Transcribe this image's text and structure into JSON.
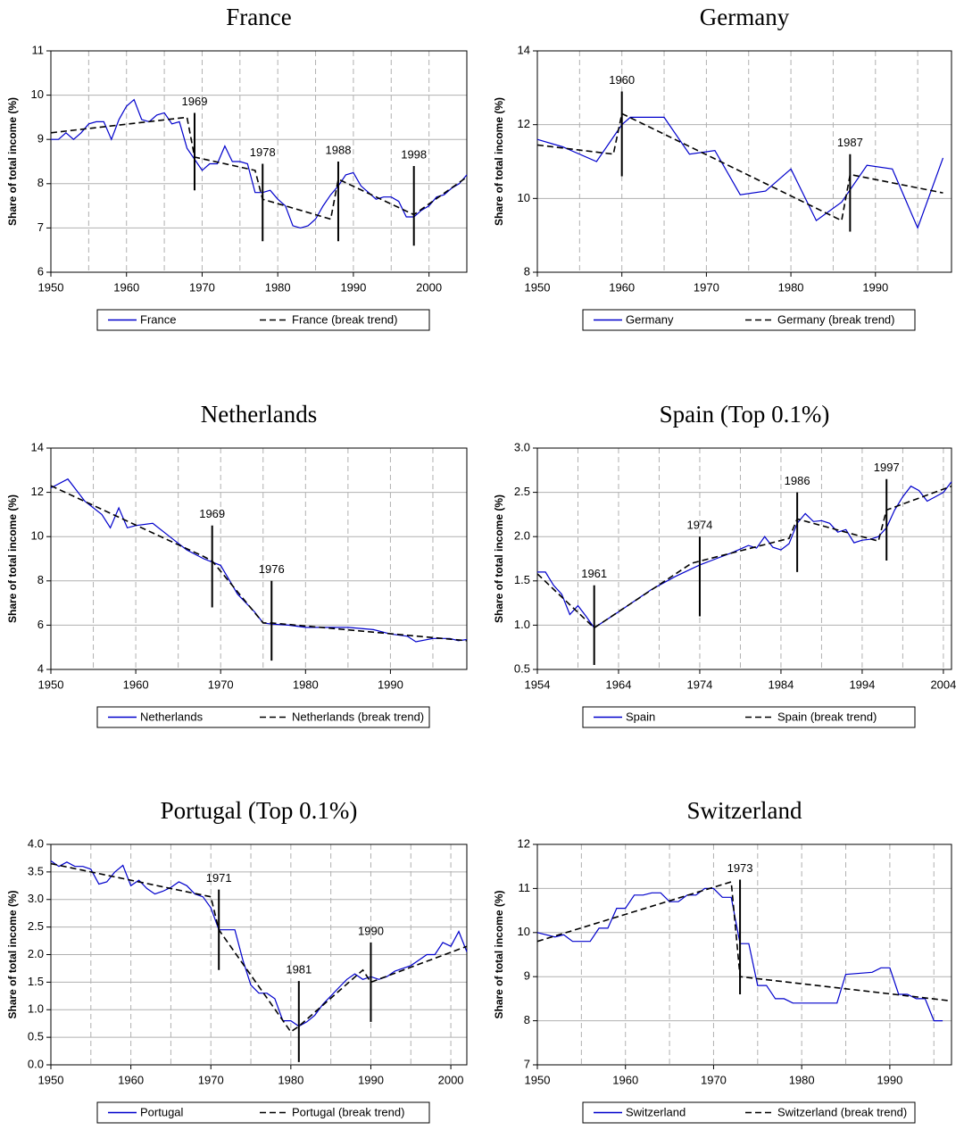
{
  "chart_data": [
    {
      "type": "line",
      "title": "France",
      "ylabel": "Share of total income (%)",
      "xlim": [
        1950,
        2005
      ],
      "xticks": [
        1950,
        1960,
        1970,
        1980,
        1990,
        2000
      ],
      "ylim": [
        6,
        11
      ],
      "yticks": [
        6,
        7,
        8,
        9,
        10,
        11
      ],
      "grid": true,
      "xgrid_step": 5,
      "series": [
        {
          "name": "France",
          "color": "#0000cc",
          "style": "solid",
          "x": [
            1950,
            1951,
            1952,
            1953,
            1954,
            1955,
            1956,
            1957,
            1958,
            1959,
            1960,
            1961,
            1962,
            1963,
            1964,
            1965,
            1966,
            1967,
            1968,
            1969,
            1970,
            1971,
            1972,
            1973,
            1974,
            1975,
            1976,
            1977,
            1978,
            1979,
            1980,
            1981,
            1982,
            1983,
            1984,
            1985,
            1986,
            1987,
            1988,
            1989,
            1990,
            1991,
            1992,
            1993,
            1994,
            1995,
            1996,
            1997,
            1998,
            1999,
            2000,
            2001,
            2002,
            2003,
            2004,
            2005
          ],
          "values": [
            9.0,
            9.0,
            9.15,
            9.0,
            9.15,
            9.35,
            9.4,
            9.4,
            9.0,
            9.45,
            9.75,
            9.9,
            9.45,
            9.4,
            9.55,
            9.6,
            9.35,
            9.4,
            8.8,
            8.55,
            8.3,
            8.45,
            8.45,
            8.85,
            8.5,
            8.5,
            8.45,
            7.8,
            7.8,
            7.85,
            7.65,
            7.5,
            7.05,
            7.0,
            7.05,
            7.2,
            7.5,
            7.75,
            7.95,
            8.2,
            8.25,
            7.95,
            7.8,
            7.65,
            7.7,
            7.7,
            7.6,
            7.25,
            7.25,
            7.4,
            7.5,
            7.7,
            7.75,
            7.9,
            8.0,
            8.2
          ]
        },
        {
          "name": "France (break trend)",
          "color": "#000000",
          "style": "dashed",
          "x": [
            1950,
            1968,
            1969,
            1977,
            1978,
            1987,
            1988,
            1998,
            2005
          ],
          "values": [
            9.15,
            9.5,
            8.6,
            8.3,
            7.65,
            7.2,
            8.1,
            7.3,
            8.15
          ]
        }
      ],
      "breaks": [
        {
          "x": 1969,
          "y": [
            7.85,
            9.6
          ]
        },
        {
          "x": 1978,
          "y": [
            6.7,
            8.45
          ]
        },
        {
          "x": 1988,
          "y": [
            6.7,
            8.5
          ]
        },
        {
          "x": 1998,
          "y": [
            6.6,
            8.4
          ]
        }
      ]
    },
    {
      "type": "line",
      "title": "Germany",
      "ylabel": "Share of total income (%)",
      "xlim": [
        1950,
        1999
      ],
      "xticks": [
        1950,
        1960,
        1970,
        1980,
        1990
      ],
      "ylim": [
        8,
        14
      ],
      "yticks": [
        8,
        10,
        12,
        14
      ],
      "grid": true,
      "xgrid_step": 5,
      "series": [
        {
          "name": "Germany",
          "color": "#0000cc",
          "style": "solid",
          "x": [
            1950,
            1953,
            1957,
            1960,
            1961,
            1965,
            1968,
            1971,
            1974,
            1977,
            1980,
            1983,
            1986,
            1989,
            1992,
            1995,
            1998
          ],
          "values": [
            11.6,
            11.4,
            11.0,
            12.0,
            12.2,
            12.2,
            11.2,
            11.3,
            10.1,
            10.2,
            10.8,
            9.4,
            9.9,
            10.9,
            10.8,
            9.2,
            11.1
          ]
        },
        {
          "name": "Germany (break trend)",
          "color": "#000000",
          "style": "dashed",
          "x": [
            1950,
            1959,
            1960,
            1986,
            1987,
            1998
          ],
          "values": [
            11.45,
            11.2,
            12.3,
            9.4,
            10.65,
            10.15
          ]
        }
      ],
      "breaks": [
        {
          "x": 1960,
          "y": [
            10.6,
            12.9
          ]
        },
        {
          "x": 1987,
          "y": [
            9.1,
            11.2
          ]
        }
      ]
    },
    {
      "type": "line",
      "title": "Netherlands",
      "ylabel": "Share of total income (%)",
      "xlim": [
        1950,
        1999
      ],
      "xticks": [
        1950,
        1960,
        1970,
        1980,
        1990
      ],
      "ylim": [
        4,
        14
      ],
      "yticks": [
        4,
        6,
        8,
        10,
        12,
        14
      ],
      "grid": true,
      "xgrid_step": 5,
      "series": [
        {
          "name": "Netherlands",
          "color": "#0000cc",
          "style": "solid",
          "x": [
            1950,
            1952,
            1954,
            1956,
            1957,
            1958,
            1959,
            1960,
            1962,
            1964,
            1966,
            1968,
            1970,
            1972,
            1974,
            1975,
            1976,
            1978,
            1980,
            1982,
            1985,
            1988,
            1990,
            1992,
            1993,
            1995,
            1997,
            1998,
            1999
          ],
          "values": [
            12.2,
            12.6,
            11.6,
            11.0,
            10.4,
            11.3,
            10.4,
            10.5,
            10.6,
            10.0,
            9.4,
            9.0,
            8.7,
            7.4,
            6.6,
            6.1,
            6.05,
            6.0,
            5.9,
            5.9,
            5.9,
            5.8,
            5.6,
            5.5,
            5.25,
            5.4,
            5.4,
            5.3,
            5.35
          ]
        },
        {
          "name": "Netherlands (break trend)",
          "color": "#000000",
          "style": "dashed",
          "x": [
            1950,
            1968,
            1969,
            1975,
            1976,
            1999
          ],
          "values": [
            12.3,
            9.1,
            8.9,
            6.1,
            6.1,
            5.3
          ]
        }
      ],
      "breaks": [
        {
          "x": 1969,
          "y": [
            6.8,
            10.5
          ]
        },
        {
          "x": 1976,
          "y": [
            4.4,
            8.0
          ]
        }
      ]
    },
    {
      "type": "line",
      "title": "Spain (Top 0.1%)",
      "ylabel": "Share of total income (%)",
      "xlim": [
        1954,
        2005
      ],
      "xticks": [
        1954,
        1964,
        1974,
        1984,
        1994,
        2004
      ],
      "ylim": [
        0.5,
        3
      ],
      "yticks": [
        0.5,
        {
          "value": 1,
          "label": "1.0"
        },
        1.5,
        {
          "value": 2,
          "label": "2.0"
        },
        2.5,
        {
          "value": 3,
          "label": "3.0"
        }
      ],
      "grid": true,
      "xgrid_step": 5,
      "series": [
        {
          "name": "Spain",
          "color": "#0000cc",
          "style": "solid",
          "x": [
            1954,
            1955,
            1956,
            1957,
            1958,
            1959,
            1960,
            1961,
            1964,
            1968,
            1971,
            1974,
            1976,
            1978,
            1980,
            1981,
            1982,
            1983,
            1984,
            1985,
            1986,
            1987,
            1988,
            1989,
            1990,
            1991,
            1992,
            1993,
            1994,
            1995,
            1996,
            1997,
            1998,
            1999,
            2000,
            2001,
            2002,
            2003,
            2004,
            2005
          ],
          "values": [
            1.6,
            1.6,
            1.45,
            1.35,
            1.12,
            1.22,
            1.1,
            0.97,
            1.15,
            1.4,
            1.55,
            1.68,
            1.75,
            1.82,
            1.9,
            1.87,
            2.0,
            1.88,
            1.85,
            1.92,
            2.15,
            2.26,
            2.17,
            2.18,
            2.15,
            2.05,
            2.08,
            1.93,
            1.96,
            1.97,
            2.0,
            2.1,
            2.3,
            2.45,
            2.57,
            2.52,
            2.4,
            2.45,
            2.5,
            2.62
          ]
        },
        {
          "name": "Spain (break trend)",
          "color": "#000000",
          "style": "dashed",
          "x": [
            1954,
            1961,
            1973,
            1985,
            1986,
            1996,
            1997,
            2005
          ],
          "values": [
            1.58,
            0.97,
            1.7,
            1.98,
            2.2,
            1.95,
            2.3,
            2.57
          ]
        }
      ],
      "breaks": [
        {
          "x": 1961,
          "y": [
            0.55,
            1.45
          ]
        },
        {
          "x": 1974,
          "y": [
            1.1,
            2.0
          ]
        },
        {
          "x": 1986,
          "y": [
            1.6,
            2.5
          ]
        },
        {
          "x": 1997,
          "y": [
            1.73,
            2.65
          ]
        }
      ]
    },
    {
      "type": "line",
      "title": "Portugal (Top 0.1%)",
      "ylabel": "Share of total income (%)",
      "xlim": [
        1950,
        2002
      ],
      "xticks": [
        1950,
        1960,
        1970,
        1980,
        1990,
        2000
      ],
      "ylim": [
        0,
        4
      ],
      "yticks": [
        {
          "value": 0,
          "label": "0.0"
        },
        0.5,
        {
          "value": 1,
          "label": "1.0"
        },
        1.5,
        {
          "value": 2,
          "label": "2.0"
        },
        2.5,
        {
          "value": 3,
          "label": "3.0"
        },
        3.5,
        {
          "value": 4,
          "label": "4.0"
        }
      ],
      "grid": true,
      "xgrid_step": 5,
      "series": [
        {
          "name": "Portugal",
          "color": "#0000cc",
          "style": "solid",
          "x": [
            1950,
            1951,
            1952,
            1953,
            1954,
            1955,
            1956,
            1957,
            1958,
            1959,
            1960,
            1961,
            1962,
            1963,
            1964,
            1965,
            1966,
            1967,
            1968,
            1969,
            1970,
            1971,
            1972,
            1973,
            1974,
            1975,
            1976,
            1977,
            1978,
            1979,
            1980,
            1981,
            1982,
            1983,
            1984,
            1985,
            1986,
            1987,
            1988,
            1989,
            1990,
            1991,
            1992,
            1993,
            1994,
            1995,
            1996,
            1997,
            1998,
            1999,
            2000,
            2001,
            2002
          ],
          "values": [
            3.7,
            3.6,
            3.68,
            3.6,
            3.6,
            3.55,
            3.28,
            3.32,
            3.5,
            3.62,
            3.25,
            3.35,
            3.2,
            3.1,
            3.15,
            3.22,
            3.32,
            3.25,
            3.1,
            3.05,
            2.85,
            2.45,
            2.45,
            2.45,
            1.9,
            1.45,
            1.3,
            1.3,
            1.2,
            0.8,
            0.8,
            0.7,
            0.78,
            0.9,
            1.1,
            1.25,
            1.4,
            1.55,
            1.65,
            1.55,
            1.6,
            1.55,
            1.6,
            1.7,
            1.75,
            1.8,
            1.9,
            2.0,
            2.0,
            2.22,
            2.15,
            2.42,
            2.05
          ]
        },
        {
          "name": "Portugal (break trend)",
          "color": "#000000",
          "style": "dashed",
          "x": [
            1950,
            1970,
            1971,
            1980,
            1981,
            1989,
            1990,
            2002
          ],
          "values": [
            3.65,
            3.05,
            2.45,
            0.6,
            0.7,
            1.72,
            1.5,
            2.15
          ]
        }
      ],
      "breaks": [
        {
          "x": 1971,
          "y": [
            1.72,
            3.18
          ]
        },
        {
          "x": 1981,
          "y": [
            0.05,
            1.52
          ]
        },
        {
          "x": 1990,
          "y": [
            0.78,
            2.22
          ]
        }
      ]
    },
    {
      "type": "line",
      "title": "Switzerland",
      "ylabel": "Share of total income (%)",
      "xlim": [
        1950,
        1997
      ],
      "xticks": [
        1950,
        1960,
        1970,
        1980,
        1990
      ],
      "ylim": [
        7,
        12
      ],
      "yticks": [
        7,
        8,
        9,
        10,
        11,
        12
      ],
      "grid": true,
      "xgrid_step": 5,
      "series": [
        {
          "name": "Switzerland",
          "color": "#0000cc",
          "style": "solid",
          "x": [
            1950,
            1952,
            1953,
            1954,
            1956,
            1957,
            1958,
            1959,
            1960,
            1961,
            1962,
            1963,
            1964,
            1965,
            1966,
            1967,
            1968,
            1969,
            1970,
            1971,
            1972,
            1973,
            1974,
            1975,
            1976,
            1977,
            1978,
            1979,
            1984,
            1985,
            1988,
            1989,
            1990,
            1991,
            1992,
            1993,
            1994,
            1995,
            1996
          ],
          "values": [
            10.0,
            9.9,
            9.95,
            9.8,
            9.8,
            10.1,
            10.1,
            10.55,
            10.55,
            10.85,
            10.85,
            10.9,
            10.9,
            10.7,
            10.7,
            10.85,
            10.85,
            11.0,
            11.0,
            10.8,
            10.8,
            9.75,
            9.75,
            8.8,
            8.8,
            8.5,
            8.5,
            8.4,
            8.4,
            9.05,
            9.1,
            9.2,
            9.2,
            8.6,
            8.6,
            8.5,
            8.5,
            8.0,
            8.0
          ]
        },
        {
          "name": "Switzerland (break trend)",
          "color": "#000000",
          "style": "dashed",
          "x": [
            1950,
            1972,
            1973,
            1997
          ],
          "values": [
            9.8,
            11.15,
            9.0,
            8.45
          ]
        }
      ],
      "breaks": [
        {
          "x": 1973,
          "y": [
            8.6,
            11.2
          ]
        }
      ]
    }
  ]
}
